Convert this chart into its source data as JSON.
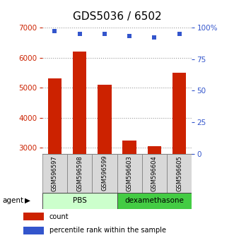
{
  "title": "GDS5036 / 6502",
  "categories": [
    "GSM596597",
    "GSM596598",
    "GSM596599",
    "GSM596603",
    "GSM596604",
    "GSM596605"
  ],
  "bar_values": [
    5300,
    6200,
    5100,
    3250,
    3050,
    5500
  ],
  "scatter_values": [
    97,
    95,
    95,
    93,
    92,
    95
  ],
  "ylim_left": [
    2800,
    7000
  ],
  "ylim_right": [
    0,
    100
  ],
  "yticks_left": [
    3000,
    4000,
    5000,
    6000,
    7000
  ],
  "yticks_right": [
    0,
    25,
    50,
    75,
    100
  ],
  "bar_color": "#cc2200",
  "scatter_color": "#3355cc",
  "bar_width": 0.55,
  "pbs_color": "#ccffcc",
  "dex_color": "#44cc44",
  "grid_color": "#999999",
  "left_tick_color": "#cc2200",
  "right_tick_color": "#3355cc",
  "tick_fontsize": 7.5,
  "label_fontsize": 7,
  "cat_fontsize": 6,
  "group_fontsize": 7.5,
  "title_fontsize": 11,
  "legend_fontsize": 7
}
